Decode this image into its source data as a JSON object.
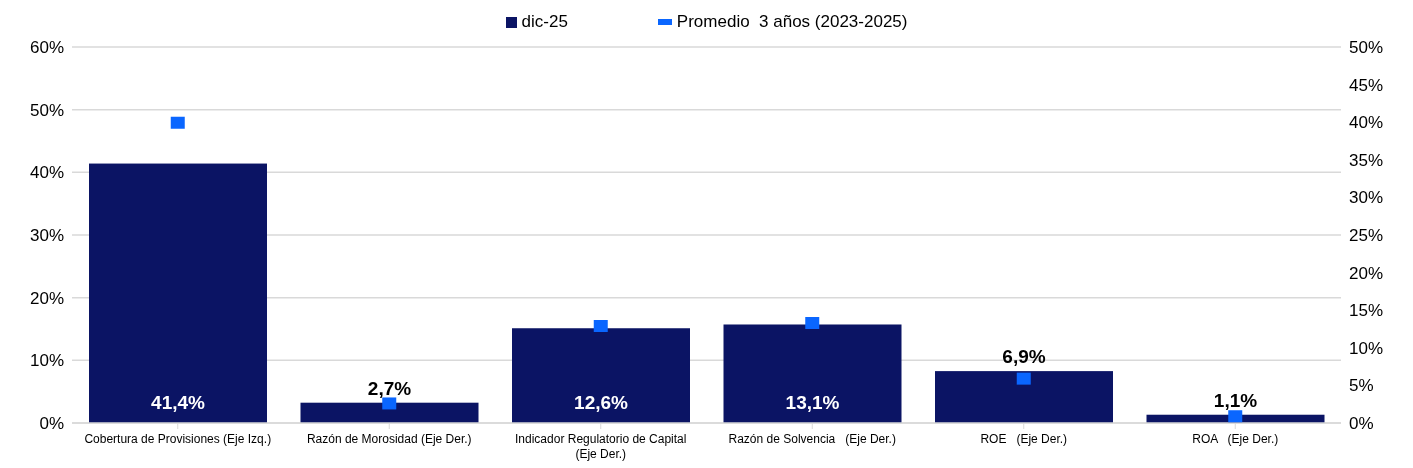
{
  "chart_data": {
    "type": "bar",
    "categories": [
      "Cobertura de Provisiones (Eje Izq.)",
      "Razón de Morosidad (Eje Der.)",
      "Indicador Regulatorio de Capital (Eje Der.)",
      "Razón de Solvencia   (Eje Der.)",
      "ROE   (Eje Der.)",
      "ROA   (Eje Der.)"
    ],
    "series": [
      {
        "name": "dic-25",
        "color": "#0b1464",
        "values": [
          41.4,
          null,
          null,
          null,
          null,
          null
        ],
        "value_labels": [
          "41,4%",
          null,
          null,
          null,
          null,
          null
        ]
      },
      {
        "color": "#0b1464",
        "axis": "y2",
        "values": [
          null,
          2.7,
          12.6,
          13.1,
          6.9,
          1.1
        ],
        "value_labels": [
          null,
          "2,7%",
          "12,6%",
          "13,1%",
          "6,9%",
          "1,1%"
        ]
      },
      {
        "name": "Promedio  3 años (2023-2025)",
        "type": "scatter",
        "color": "#0a66ff",
        "values": [
          47.9,
          null,
          null,
          null,
          null,
          null
        ]
      },
      {
        "type": "scatter",
        "color": "#0a66ff",
        "axis": "y2",
        "values": [
          null,
          2.6,
          12.9,
          13.3,
          5.9,
          0.9
        ]
      }
    ],
    "ylim": [
      0,
      60
    ],
    "yticks": [
      {
        "value": 0,
        "label": "0%"
      },
      {
        "value": 10,
        "label": "10%"
      },
      {
        "value": 20,
        "label": "20%"
      },
      {
        "value": 30,
        "label": "30%"
      },
      {
        "value": 40,
        "label": "40%"
      },
      {
        "value": 50,
        "label": "50%"
      },
      {
        "value": 60,
        "label": "60%"
      }
    ],
    "y2lim": [
      0,
      50
    ],
    "y2ticks": [
      {
        "value": 0,
        "label": "0%"
      },
      {
        "value": 5,
        "label": "5%"
      },
      {
        "value": 10,
        "label": "10%"
      },
      {
        "value": 15,
        "label": "15%"
      },
      {
        "value": 20,
        "label": "20%"
      },
      {
        "value": 25,
        "label": "25%"
      },
      {
        "value": 30,
        "label": "30%"
      },
      {
        "value": 35,
        "label": "35%"
      },
      {
        "value": 40,
        "label": "40%"
      },
      {
        "value": 45,
        "label": "45%"
      },
      {
        "value": 50,
        "label": "50%"
      }
    ],
    "grid": "y",
    "legend": "top",
    "marker": "square"
  }
}
